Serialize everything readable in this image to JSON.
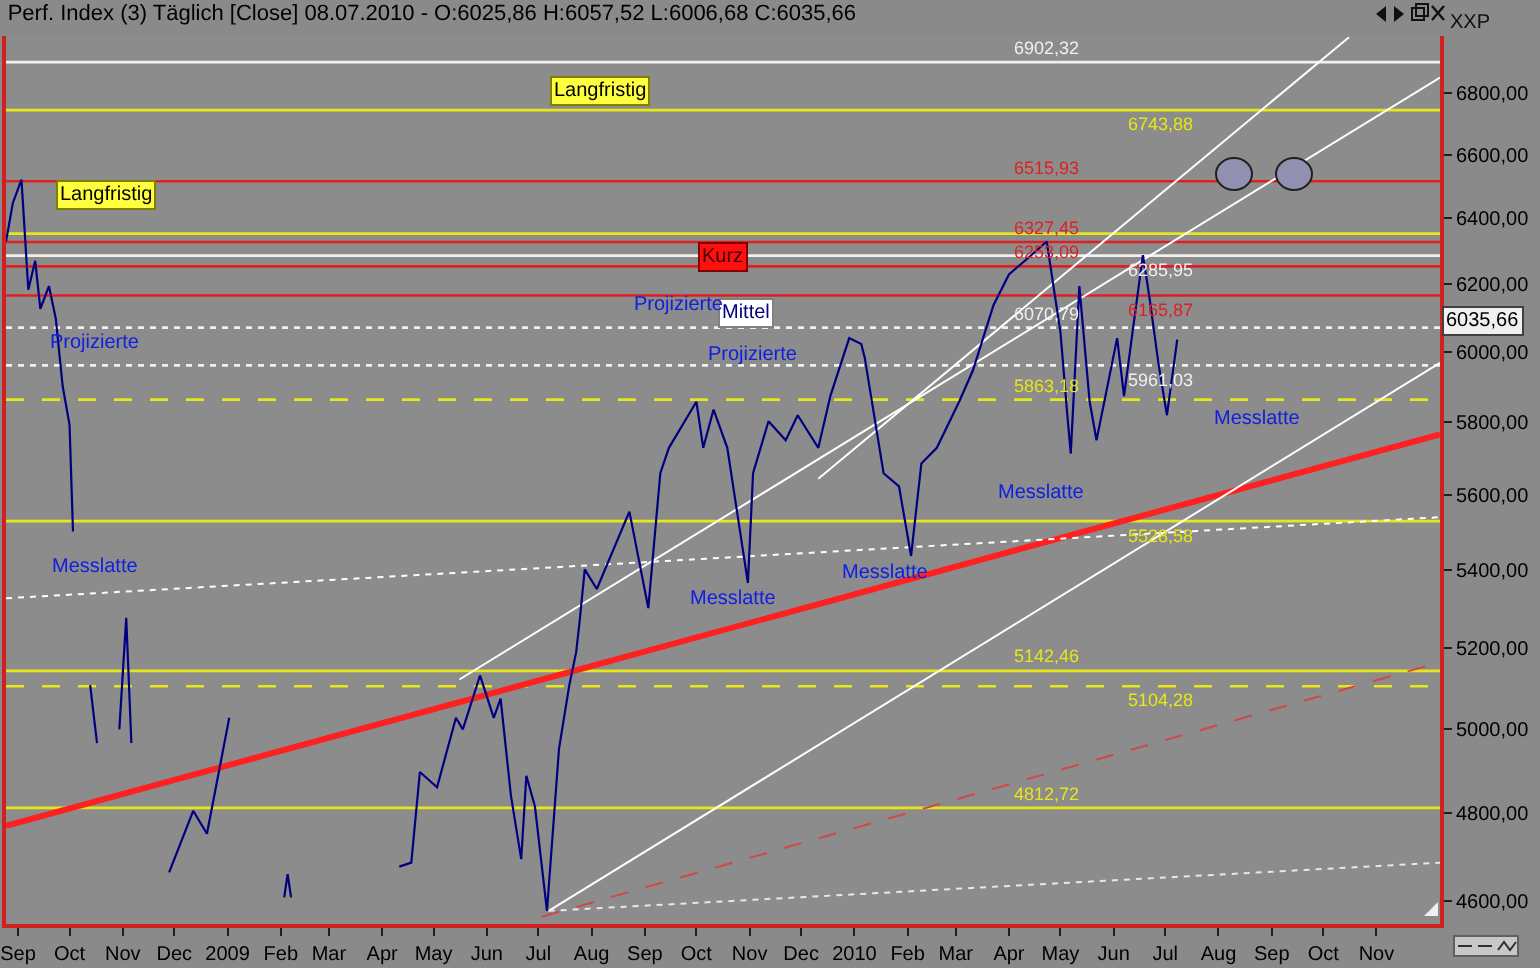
{
  "chart_data": {
    "type": "line",
    "title": "Perf. Index (3) Täglich [Close] 08.07.2010 - O:6025,86 H:6057,52 L:6006,68 C:6035,66",
    "log": "y",
    "xlim": [
      "2008-08-25",
      "2010-12-08"
    ],
    "ylim": [
      4550,
      6990
    ],
    "xticks": [
      {
        "value": "2008-09-01",
        "label": "Sep"
      },
      {
        "value": "2008-10-01",
        "label": "Oct"
      },
      {
        "value": "2008-11-01",
        "label": "Nov"
      },
      {
        "value": "2008-12-01",
        "label": "Dec"
      },
      {
        "value": "2009-01-01",
        "label": "2009"
      },
      {
        "value": "2009-02-01",
        "label": "Feb"
      },
      {
        "value": "2009-03-01",
        "label": "Mar"
      },
      {
        "value": "2009-04-01",
        "label": "Apr"
      },
      {
        "value": "2009-05-01",
        "label": "May"
      },
      {
        "value": "2009-06-01",
        "label": "Jun"
      },
      {
        "value": "2009-07-01",
        "label": "Jul"
      },
      {
        "value": "2009-08-01",
        "label": "Aug"
      },
      {
        "value": "2009-09-01",
        "label": "Sep"
      },
      {
        "value": "2009-10-01",
        "label": "Oct"
      },
      {
        "value": "2009-11-01",
        "label": "Nov"
      },
      {
        "value": "2009-12-01",
        "label": "Dec"
      },
      {
        "value": "2010-01-01",
        "label": "2010"
      },
      {
        "value": "2010-02-01",
        "label": "Feb"
      },
      {
        "value": "2010-03-01",
        "label": "Mar"
      },
      {
        "value": "2010-04-01",
        "label": "Apr"
      },
      {
        "value": "2010-05-01",
        "label": "May"
      },
      {
        "value": "2010-06-01",
        "label": "Jun"
      },
      {
        "value": "2010-07-01",
        "label": "Jul"
      },
      {
        "value": "2010-08-01",
        "label": "Aug"
      },
      {
        "value": "2010-09-01",
        "label": "Sep"
      },
      {
        "value": "2010-10-01",
        "label": "Oct"
      },
      {
        "value": "2010-11-01",
        "label": "Nov"
      }
    ],
    "yticks": [
      {
        "value": 4600,
        "label": "4600,00"
      },
      {
        "value": 4800,
        "label": "4800,00"
      },
      {
        "value": 5000,
        "label": "5000,00"
      },
      {
        "value": 5200,
        "label": "5200,00"
      },
      {
        "value": 5400,
        "label": "5400,00"
      },
      {
        "value": 5600,
        "label": "5600,00"
      },
      {
        "value": 5800,
        "label": "5800,00"
      },
      {
        "value": 6000,
        "label": "6000,00"
      },
      {
        "value": 6200,
        "label": "6200,00"
      },
      {
        "value": 6400,
        "label": "6400,00"
      },
      {
        "value": 6600,
        "label": "6600,00"
      },
      {
        "value": 6800,
        "label": "6800,00"
      }
    ],
    "series": [
      {
        "color": "#000080",
        "x": [
          "2008-08-25",
          "2008-08-29",
          "2008-09-03",
          "2008-09-07",
          "2008-09-11",
          "2008-09-14",
          "2008-09-19",
          "2008-09-23",
          "2008-09-27",
          "2008-10-01",
          "2008-10-03",
          "2008-10-08",
          "2008-10-13",
          "2008-10-17",
          "2008-10-24",
          "2008-10-30",
          "2008-11-03",
          "2008-11-06",
          "2008-11-11",
          "2008-11-28",
          "2008-12-12",
          "2008-12-20",
          "2009-01-02",
          "2009-01-12",
          "2009-02-03",
          "2009-02-05",
          "2009-02-07",
          "2009-02-09",
          "2009-03-15",
          "2009-04-11",
          "2009-04-18",
          "2009-04-23",
          "2009-05-03",
          "2009-05-14",
          "2009-05-18",
          "2009-05-28",
          "2009-06-05",
          "2009-06-09",
          "2009-06-15",
          "2009-06-21",
          "2009-06-24",
          "2009-06-29",
          "2009-07-06",
          "2009-07-13",
          "2009-07-19",
          "2009-07-23",
          "2009-07-25",
          "2009-07-28",
          "2009-08-04",
          "2009-08-23",
          "2009-09-03",
          "2009-09-10",
          "2009-09-15",
          "2009-10-01",
          "2009-10-05",
          "2009-10-11",
          "2009-10-19",
          "2009-10-31",
          "2009-11-03",
          "2009-11-12",
          "2009-11-22",
          "2009-11-29",
          "2009-12-11",
          "2009-12-18",
          "2009-12-29",
          "2010-01-05",
          "2010-01-07",
          "2010-01-18",
          "2010-01-27",
          "2010-02-03",
          "2010-02-09",
          "2010-02-18",
          "2010-03-03",
          "2010-03-11",
          "2010-03-23",
          "2010-04-01",
          "2010-04-14",
          "2010-04-23",
          "2010-05-01",
          "2010-05-05",
          "2010-05-07",
          "2010-05-12",
          "2010-05-18",
          "2010-05-22",
          "2010-06-03",
          "2010-06-07",
          "2010-06-15",
          "2010-06-18",
          "2010-06-22",
          "2010-06-27",
          "2010-07-02",
          "2010-07-08"
        ],
        "values": [
          6329,
          6448,
          6521,
          6183,
          6270,
          6126,
          6194,
          6097,
          5901,
          5792,
          5501,
          null,
          5107,
          4966,
          null,
          4999,
          5276,
          4966,
          null,
          4665,
          4806,
          4753,
          5027,
          null,
          4609,
          4661,
          4609,
          null,
          null,
          4678,
          4687,
          4897,
          4861,
          5027,
          4999,
          5131,
          5027,
          5074,
          4842,
          4695,
          4888,
          4816,
          4579,
          4952,
          5107,
          5189,
          5266,
          5401,
          5350,
          5554,
          5301,
          5658,
          5728,
          5857,
          5728,
          5835,
          5728,
          5366,
          5658,
          5802,
          5749,
          5819,
          5728,
          5873,
          6040,
          6023,
          5984,
          5658,
          5622,
          5436,
          5685,
          5728,
          5857,
          5946,
          6137,
          6229,
          6287,
          6329,
          6057,
          5819,
          5712,
          6194,
          5857,
          5749,
          6040,
          5873,
          6172,
          6287,
          6154,
          5968,
          5819,
          6035.66
        ]
      },
      {
        "type": "line",
        "color": "#ff2020",
        "line_style": "solid",
        "x": [
          "2008-08-25",
          "2010-12-08"
        ],
        "values": [
          4771,
          5765
        ]
      },
      {
        "type": "line",
        "color": "#d04848",
        "line_style": "dashed",
        "x": [
          "2009-07-03",
          "2010-12-08"
        ],
        "values": [
          4566,
          5164
        ]
      },
      {
        "type": "line",
        "color": "#ffffff",
        "line_style": "solid",
        "x": [
          "2009-07-07",
          "2010-12-08"
        ],
        "values": [
          4579,
          5968
        ]
      },
      {
        "type": "line",
        "color": "#ffffff",
        "line_style": "solid",
        "x": [
          "2009-05-16",
          "2010-12-08"
        ],
        "values": [
          5121,
          6851
        ]
      },
      {
        "type": "line",
        "color": "#ffffff",
        "line_style": "solid",
        "x": [
          "2009-12-11",
          "2010-10-16"
        ],
        "values": [
          5643,
          6986
        ]
      },
      {
        "type": "line",
        "color": "#e8e8e8",
        "line_style": "dotted",
        "x": [
          "2009-07-07",
          "2010-12-08"
        ],
        "values": [
          4579,
          4687
        ]
      },
      {
        "type": "line",
        "color": "#ffffff",
        "line_style": "dotted",
        "x": [
          "2008-08-25",
          "2010-12-08"
        ],
        "values": [
          5326,
          5539
        ]
      }
    ],
    "ref_lines": [
      {
        "axis": "y",
        "value": 6902.32,
        "label": "6902,32",
        "color": "#f0f0f0",
        "line_style": "solid"
      },
      {
        "axis": "y",
        "value": 6743.88,
        "label": "6743,88",
        "color": "#e6e619",
        "line_style": "solid"
      },
      {
        "axis": "y",
        "value": 6515.93,
        "label": "6515,93",
        "color": "#e02020",
        "line_style": "solid"
      },
      {
        "axis": "y",
        "value": 6353,
        "label": null,
        "color": "#e6e619",
        "line_style": "solid"
      },
      {
        "axis": "y",
        "value": 6327.45,
        "label": "6327,45",
        "color": "#e02020",
        "line_style": "solid"
      },
      {
        "axis": "y",
        "value": 6285.95,
        "label": "6285,95",
        "color": "#f0f0f0",
        "line_style": "solid"
      },
      {
        "axis": "y",
        "value": 6253.09,
        "label": "6253,09",
        "color": "#e02020",
        "line_style": "solid"
      },
      {
        "axis": "y",
        "value": 6165.87,
        "label": "6165,87",
        "color": "#e02020",
        "line_style": "solid"
      },
      {
        "axis": "y",
        "value": 6070.79,
        "label": "6070,79",
        "color": "#f0f0f0",
        "line_style": "dotted"
      },
      {
        "axis": "y",
        "value": 5961.03,
        "label": "5961,03",
        "color": "#f0f0f0",
        "line_style": "dotted"
      },
      {
        "axis": "y",
        "value": 5863.18,
        "label": "5863,18",
        "color": "#e6e619",
        "line_style": "dashed"
      },
      {
        "axis": "y",
        "value": 5528.58,
        "label": "5528,58",
        "color": "#e6e619",
        "line_style": "solid"
      },
      {
        "axis": "y",
        "value": 5142.46,
        "label": "5142,46",
        "color": "#e6e619",
        "line_style": "solid"
      },
      {
        "axis": "y",
        "value": 5104.28,
        "label": "5104,28",
        "color": "#e6e619",
        "line_style": "dashed"
      },
      {
        "axis": "y",
        "value": 4812.72,
        "label": "4812,72",
        "color": "#e6e619",
        "line_style": "solid"
      }
    ],
    "annotations": [
      "Langfristig",
      "Langfristig",
      "Kurz",
      "Mittel",
      "Projizierte",
      "Projizierte",
      "Projizierte",
      "Messlatte",
      "Messlatte",
      "Messlatte",
      "Messlatte",
      "Messlatte",
      "6035,66",
      "XXP"
    ]
  }
}
